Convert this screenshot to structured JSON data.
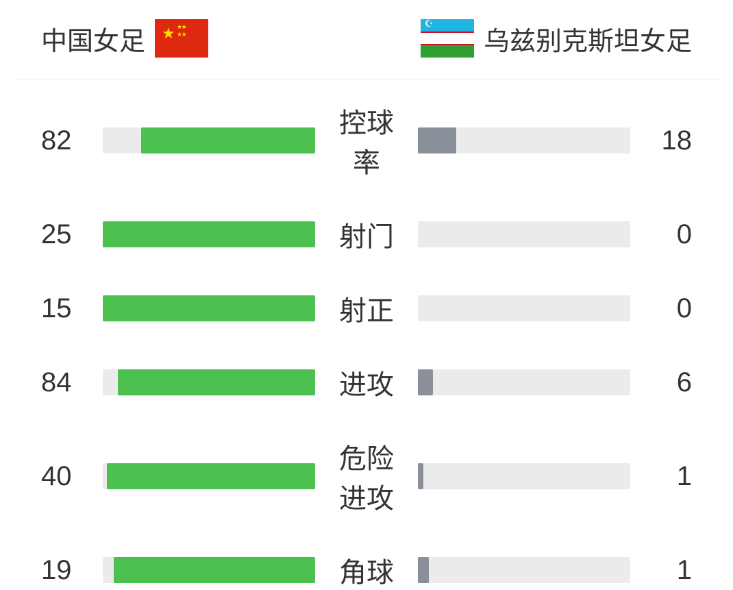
{
  "teams": {
    "left": {
      "name": "中国女足",
      "flag": "china"
    },
    "right": {
      "name": "乌兹别克斯坦女足",
      "flag": "uzbekistan"
    }
  },
  "colors": {
    "leftBar": "#4cc14f",
    "rightBar": "#8a9099",
    "barBackground": "#ebebeb",
    "text": "#333333",
    "divider": "#eeeeee"
  },
  "stats": [
    {
      "label": "控球率",
      "leftValue": 82,
      "rightValue": 18,
      "leftPercent": 82,
      "rightPercent": 18
    },
    {
      "label": "射门",
      "leftValue": 25,
      "rightValue": 0,
      "leftPercent": 100,
      "rightPercent": 0
    },
    {
      "label": "射正",
      "leftValue": 15,
      "rightValue": 0,
      "leftPercent": 100,
      "rightPercent": 0
    },
    {
      "label": "进攻",
      "leftValue": 84,
      "rightValue": 6,
      "leftPercent": 93,
      "rightPercent": 7
    },
    {
      "label": "危险进攻",
      "leftValue": 40,
      "rightValue": 1,
      "leftPercent": 98,
      "rightPercent": 2.5
    },
    {
      "label": "角球",
      "leftValue": 19,
      "rightValue": 1,
      "leftPercent": 95,
      "rightPercent": 5
    }
  ]
}
